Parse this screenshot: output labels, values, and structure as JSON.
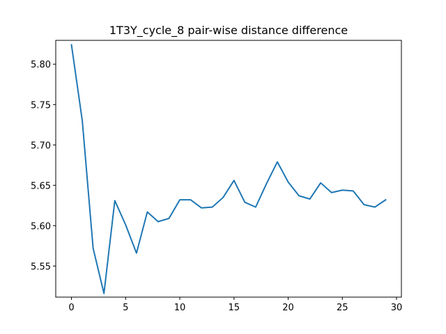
{
  "chart_data": {
    "type": "line",
    "title": "1T3Y_cycle_8 pair-wise distance difference",
    "xlabel": "",
    "ylabel": "",
    "xlim": [
      -1.45,
      30.45
    ],
    "ylim": [
      5.5115,
      5.8295
    ],
    "xticks": [
      0,
      5,
      10,
      15,
      20,
      25,
      30
    ],
    "xtick_labels": [
      "0",
      "5",
      "10",
      "15",
      "20",
      "25",
      "30"
    ],
    "yticks": [
      5.55,
      5.6,
      5.65,
      5.7,
      5.75,
      5.8
    ],
    "ytick_labels": [
      "5.55",
      "5.60",
      "5.65",
      "5.70",
      "5.75",
      "5.80"
    ],
    "grid": false,
    "legend": "none",
    "series": [
      {
        "color": "#1f77b4",
        "x": [
          0,
          1,
          2,
          3,
          4,
          5,
          6,
          7,
          8,
          9,
          10,
          11,
          12,
          13,
          14,
          15,
          16,
          17,
          18,
          19,
          20,
          21,
          22,
          23,
          24,
          25,
          26,
          27,
          28,
          29
        ],
        "values": [
          5.824,
          5.73,
          5.572,
          5.516,
          5.631,
          5.601,
          5.566,
          5.617,
          5.605,
          5.609,
          5.632,
          5.632,
          5.622,
          5.623,
          5.635,
          5.656,
          5.629,
          5.623,
          5.652,
          5.679,
          5.654,
          5.637,
          5.633,
          5.653,
          5.641,
          5.644,
          5.643,
          5.626,
          5.623,
          5.632
        ]
      }
    ]
  }
}
